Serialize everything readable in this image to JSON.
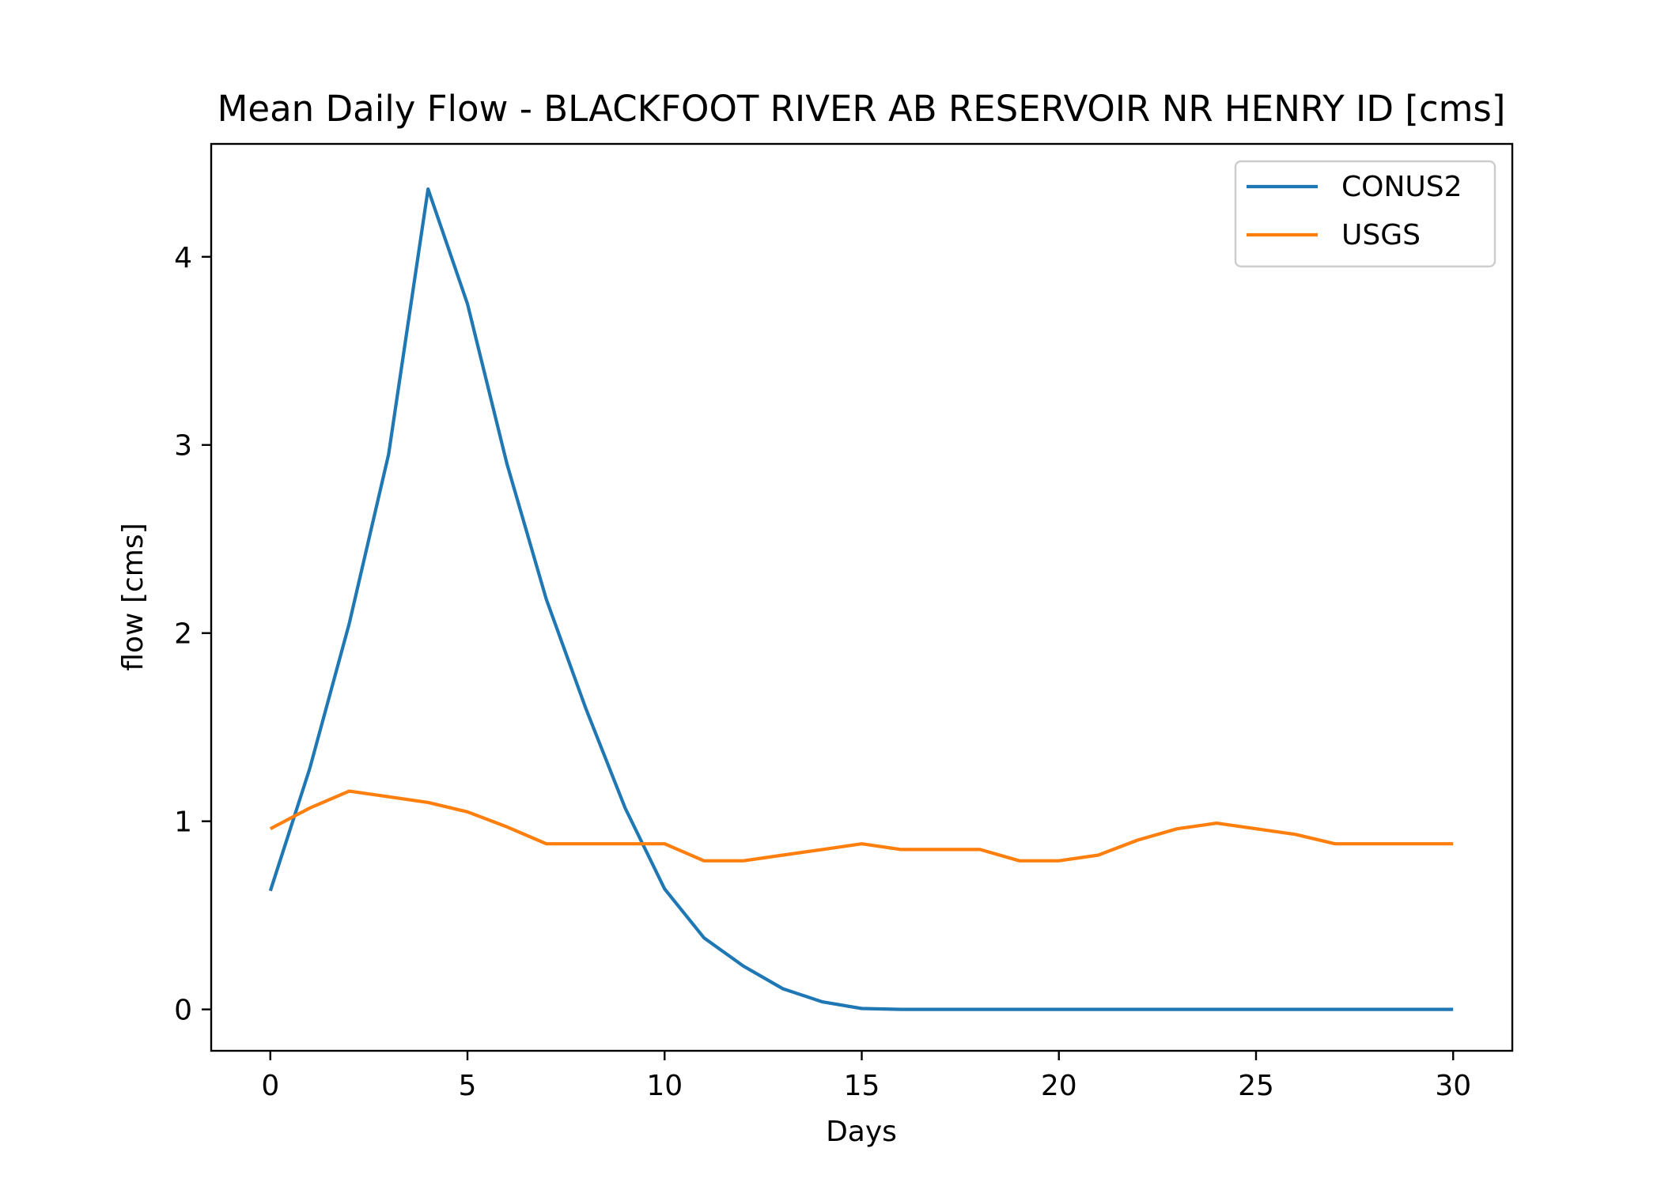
{
  "chart_data": {
    "type": "line",
    "title": "Mean Daily Flow - BLACKFOOT RIVER AB RESERVOIR NR HENRY ID [cms]",
    "xlabel": "Days",
    "ylabel": "flow [cms]",
    "xlim": [
      -1.5,
      31.5
    ],
    "ylim": [
      -0.22,
      4.6
    ],
    "xticks": [
      0,
      5,
      10,
      15,
      20,
      25,
      30
    ],
    "yticks": [
      0,
      1,
      2,
      3,
      4
    ],
    "grid": false,
    "legend_position": "upper right",
    "x": [
      0,
      1,
      2,
      3,
      4,
      5,
      6,
      7,
      8,
      9,
      10,
      11,
      12,
      13,
      14,
      15,
      16,
      17,
      18,
      19,
      20,
      21,
      22,
      23,
      24,
      25,
      26,
      27,
      28,
      29,
      30
    ],
    "series": [
      {
        "name": "CONUS2",
        "color": "#1f77b4",
        "values": [
          0.63,
          1.28,
          2.05,
          2.95,
          4.36,
          3.75,
          2.9,
          2.18,
          1.6,
          1.07,
          0.64,
          0.38,
          0.23,
          0.11,
          0.04,
          0.005,
          0.0,
          0.0,
          0.0,
          0.0,
          0.0,
          0.0,
          0.0,
          0.0,
          0.0,
          0.0,
          0.0,
          0.0,
          0.0,
          0.0,
          0.0
        ]
      },
      {
        "name": "USGS",
        "color": "#ff7f0e",
        "values": [
          0.96,
          1.07,
          1.16,
          1.13,
          1.1,
          1.05,
          0.97,
          0.88,
          0.88,
          0.88,
          0.88,
          0.79,
          0.79,
          0.82,
          0.85,
          0.88,
          0.85,
          0.85,
          0.85,
          0.79,
          0.79,
          0.82,
          0.9,
          0.96,
          0.99,
          0.96,
          0.93,
          0.88,
          0.88,
          0.88,
          0.88
        ]
      }
    ]
  }
}
